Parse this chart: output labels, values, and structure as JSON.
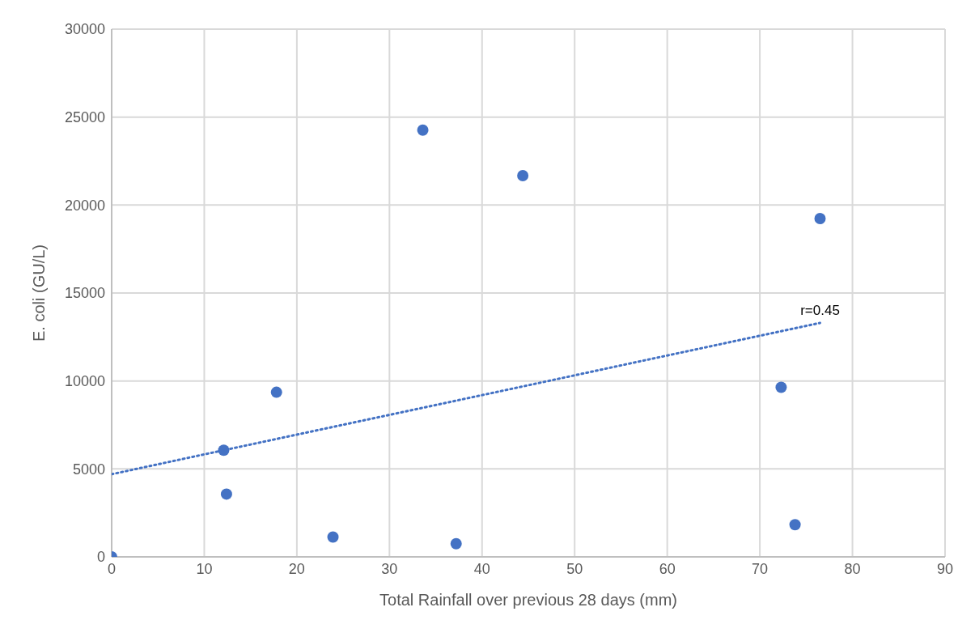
{
  "chart_data": {
    "type": "scatter",
    "xlabel": "Total Rainfall over previous 28 days (mm)",
    "ylabel": "E. coli (GU/L)",
    "x": [
      0,
      12.1,
      12.4,
      17.8,
      23.9,
      33.6,
      37.2,
      44.4,
      72.3,
      73.8,
      76.5
    ],
    "series": [
      {
        "color": "#4472c4",
        "values": [
          0,
          6060,
          3570,
          9360,
          1130,
          24260,
          750,
          21670,
          9640,
          1830,
          19230
        ],
        "marker": "circle"
      },
      {
        "type": "line",
        "color": "#4472c4",
        "x": [
          0,
          76.5
        ],
        "values": [
          4700,
          13300
        ],
        "line_style": "dotted",
        "marker": "none"
      }
    ],
    "annotations": [
      {
        "text": "r=0.45",
        "x": 76.5,
        "y": 13300
      }
    ],
    "xlim": [
      0,
      90
    ],
    "xticks": [
      0,
      10,
      20,
      30,
      40,
      50,
      60,
      70,
      80,
      90
    ],
    "ylim": [
      0,
      30000
    ],
    "yticks": [
      0,
      5000,
      10000,
      15000,
      20000,
      25000,
      30000
    ],
    "grid": true,
    "legend": false
  }
}
